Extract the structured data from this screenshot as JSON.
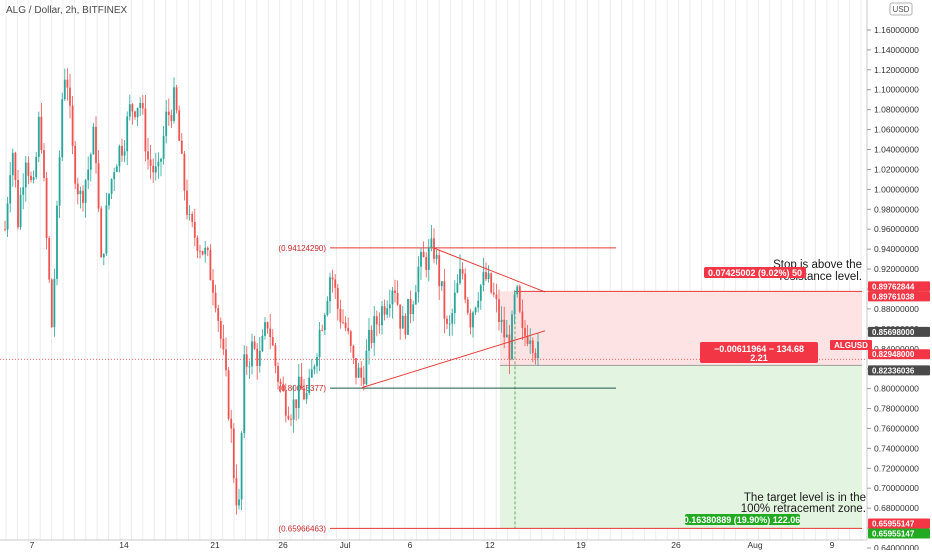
{
  "header": {
    "symbol_title": "ALG / Dollar, 2h, BITFINEX",
    "currency_button": "USD"
  },
  "colors": {
    "up": "#26a69a",
    "down": "#ef5350",
    "level_line": "#e53935",
    "stop_zone": "#fde3e3",
    "target_zone": "#e3f4e0",
    "red_tag": "#f23645",
    "green_tag": "#22ab22",
    "dark_tag": "#4a4a4a"
  },
  "chart_data": {
    "type": "candlestick",
    "y_axis": {
      "min": 0.64,
      "max": 1.17,
      "ticks": [
        0.64,
        0.66,
        0.68,
        0.7,
        0.72,
        0.74,
        0.76,
        0.78,
        0.8,
        0.82,
        0.84,
        0.86,
        0.88,
        0.9,
        0.92,
        0.94,
        0.96,
        0.98,
        1.0,
        1.02,
        1.04,
        1.06,
        1.08,
        1.1,
        1.12,
        1.14,
        1.16
      ],
      "tick_labels": [
        "0.64000000",
        "0.66000000",
        "0.68000000",
        "0.70000000",
        "0.72000000",
        "0.74000000",
        "0.76000000",
        "0.78000000",
        "0.80000000",
        "0.82000000",
        "0.84000000",
        "0.86000000",
        "0.88000000",
        "0.90000000",
        "0.92000000",
        "0.94000000",
        "0.96000000",
        "0.98000000",
        "1.00000000",
        "1.02000000",
        "1.04000000",
        "1.06000000",
        "1.08000000",
        "1.10000000",
        "1.12000000",
        "1.14000000",
        "1.16000000"
      ]
    },
    "x_axis": {
      "labels": [
        "7",
        "14",
        "21",
        "26",
        "Jul",
        "6",
        "12",
        "19",
        "26",
        "Aug",
        "9"
      ]
    },
    "price_path": [
      {
        "x": 5,
        "y": 0.96
      },
      {
        "x": 12,
        "y": 1.05
      },
      {
        "x": 18,
        "y": 0.97
      },
      {
        "x": 26,
        "y": 1.04
      },
      {
        "x": 33,
        "y": 0.99
      },
      {
        "x": 40,
        "y": 1.08
      },
      {
        "x": 47,
        "y": 0.94
      },
      {
        "x": 52,
        "y": 0.86
      },
      {
        "x": 57,
        "y": 0.97
      },
      {
        "x": 62,
        "y": 1.09
      },
      {
        "x": 66,
        "y": 1.13
      },
      {
        "x": 72,
        "y": 1.04
      },
      {
        "x": 80,
        "y": 0.99
      },
      {
        "x": 88,
        "y": 1.02
      },
      {
        "x": 95,
        "y": 1.06
      },
      {
        "x": 101,
        "y": 0.92
      },
      {
        "x": 108,
        "y": 0.99
      },
      {
        "x": 115,
        "y": 1.03
      },
      {
        "x": 124,
        "y": 1.05
      },
      {
        "x": 130,
        "y": 1.08
      },
      {
        "x": 140,
        "y": 1.09
      },
      {
        "x": 148,
        "y": 1.03
      },
      {
        "x": 158,
        "y": 1.01
      },
      {
        "x": 166,
        "y": 1.07
      },
      {
        "x": 175,
        "y": 1.09
      },
      {
        "x": 182,
        "y": 1.02
      },
      {
        "x": 190,
        "y": 0.96
      },
      {
        "x": 198,
        "y": 0.95
      },
      {
        "x": 207,
        "y": 0.93
      },
      {
        "x": 215,
        "y": 0.9
      },
      {
        "x": 222,
        "y": 0.84
      },
      {
        "x": 230,
        "y": 0.77
      },
      {
        "x": 235,
        "y": 0.7
      },
      {
        "x": 239,
        "y": 0.68
      },
      {
        "x": 244,
        "y": 0.82
      },
      {
        "x": 252,
        "y": 0.84
      },
      {
        "x": 260,
        "y": 0.83
      },
      {
        "x": 268,
        "y": 0.87
      },
      {
        "x": 276,
        "y": 0.82
      },
      {
        "x": 284,
        "y": 0.79
      },
      {
        "x": 292,
        "y": 0.78
      },
      {
        "x": 300,
        "y": 0.8
      },
      {
        "x": 308,
        "y": 0.79
      },
      {
        "x": 316,
        "y": 0.84
      },
      {
        "x": 324,
        "y": 0.88
      },
      {
        "x": 331,
        "y": 0.92
      },
      {
        "x": 338,
        "y": 0.88
      },
      {
        "x": 346,
        "y": 0.86
      },
      {
        "x": 354,
        "y": 0.82
      },
      {
        "x": 362,
        "y": 0.81
      },
      {
        "x": 370,
        "y": 0.85
      },
      {
        "x": 378,
        "y": 0.87
      },
      {
        "x": 386,
        "y": 0.89
      },
      {
        "x": 394,
        "y": 0.91
      },
      {
        "x": 402,
        "y": 0.86
      },
      {
        "x": 410,
        "y": 0.88
      },
      {
        "x": 418,
        "y": 0.92
      },
      {
        "x": 426,
        "y": 0.93
      },
      {
        "x": 434,
        "y": 0.94
      },
      {
        "x": 441,
        "y": 0.9
      },
      {
        "x": 448,
        "y": 0.85
      },
      {
        "x": 455,
        "y": 0.89
      },
      {
        "x": 462,
        "y": 0.92
      },
      {
        "x": 470,
        "y": 0.87
      },
      {
        "x": 478,
        "y": 0.9
      },
      {
        "x": 486,
        "y": 0.91
      },
      {
        "x": 494,
        "y": 0.89
      },
      {
        "x": 502,
        "y": 0.86
      },
      {
        "x": 510,
        "y": 0.84
      },
      {
        "x": 516,
        "y": 0.9
      },
      {
        "x": 522,
        "y": 0.85
      },
      {
        "x": 530,
        "y": 0.86
      },
      {
        "x": 536,
        "y": 0.84
      },
      {
        "x": 540,
        "y": 0.83
      }
    ],
    "levels": [
      {
        "label": "(0.94124290)",
        "value": 0.9412429,
        "color": "#e53935"
      },
      {
        "label": "(0.80045377)",
        "value": 0.80045377,
        "color": "#1e5a4a"
      },
      {
        "label": "(0.65966463)",
        "value": 0.65966463,
        "color": "#e53935"
      }
    ],
    "triangle": {
      "upper": [
        {
          "x": 434,
          "y": 0.941
        },
        {
          "x": 545,
          "y": 0.897
        }
      ],
      "lower": [
        {
          "x": 362,
          "y": 0.801
        },
        {
          "x": 545,
          "y": 0.858
        }
      ]
    },
    "zones": {
      "entry": 0.82336036,
      "stop": 0.89762844,
      "target": 0.65955147,
      "start_x": 500,
      "end_x": 862
    },
    "current_price": 0.82948,
    "price_tags": [
      {
        "text": "0.89762844",
        "value": 0.89762844,
        "style": "red"
      },
      {
        "text": "0.89761038",
        "value": 0.89761038,
        "style": "red"
      },
      {
        "text": "0.85698000",
        "value": 0.85698,
        "style": "dark"
      },
      {
        "text": "0.82948000",
        "value": 0.82948,
        "style": "red"
      },
      {
        "text": "0.82336036",
        "value": 0.82336036,
        "style": "dark"
      },
      {
        "text": "0.65955147",
        "value": 0.65955147,
        "style": "red"
      },
      {
        "text": "0.65955147",
        "value": 0.65955147,
        "style": "green"
      }
    ],
    "symbol_tag": "ALGUSD",
    "info_boxes": {
      "stop_box": "0.07425002 (9.02%) 50",
      "mid_box_line1": "−0.00611964 − 134.68",
      "mid_box_line2": "2.21",
      "target_box": "0.16380889 (19.90%) 122.06"
    },
    "annotations": {
      "stop_note_line1": "Stop is above the",
      "stop_note_line2": "resistance level.",
      "target_note_line1": "The target level is in the",
      "target_note_line2": "100% retracement zone."
    }
  }
}
